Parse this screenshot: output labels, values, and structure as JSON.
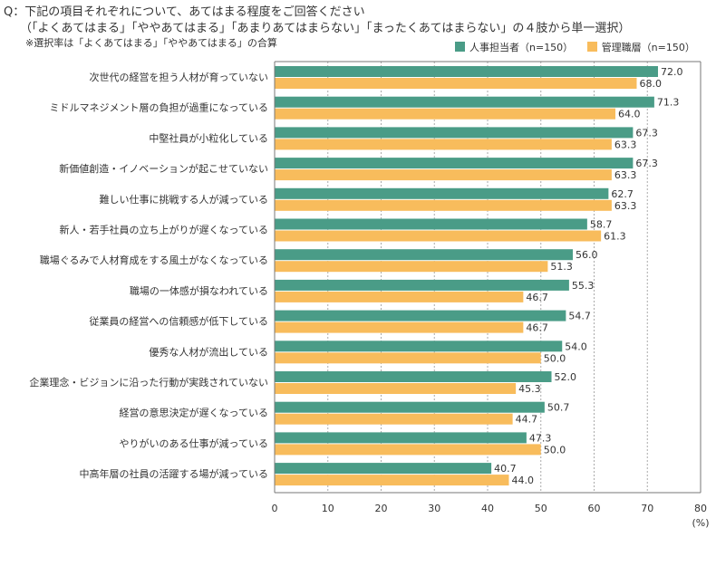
{
  "question": {
    "line1": "Q：下記の項目それぞれについて、あてはまる程度をご回答ください",
    "line2": "（「よくあてはまる」「ややあてはまる」「あまりあてはまらない」「まったくあてはまらない」の４肢から単一選択）",
    "note": "※選択率は「よくあてはまる」「ややあてはまる」の合算"
  },
  "colors": {
    "series1": "#4a9c87",
    "series2": "#f8bc5c",
    "axis": "#777777",
    "grid": "#aaaaaa"
  },
  "chart_data": {
    "type": "bar",
    "orientation": "horizontal",
    "categories": [
      "次世代の経営を担う人材が育っていない",
      "ミドルマネジメント層の負担が過重になっている",
      "中堅社員が小粒化している",
      "新価値創造・イノベーションが起こせていない",
      "難しい仕事に挑戦する人が減っている",
      "新人・若手社員の立ち上がりが遅くなっている",
      "職場ぐるみで人材育成をする風土がなくなっている",
      "職場の一体感が損なわれている",
      "従業員の経営への信頼感が低下している",
      "優秀な人材が流出している",
      "企業理念・ビジョンに沿った行動が実践されていない",
      "経営の意思決定が遅くなっている",
      "やりがいのある仕事が減っている",
      "中高年層の社員の活躍する場が減っている"
    ],
    "series": [
      {
        "name": "人事担当者（n=150）",
        "values": [
          72.0,
          71.3,
          67.3,
          67.3,
          62.7,
          58.7,
          56.0,
          55.3,
          54.7,
          54.0,
          52.0,
          50.7,
          47.3,
          40.7
        ]
      },
      {
        "name": "管理職層（n=150）",
        "values": [
          68.0,
          64.0,
          63.3,
          63.3,
          63.3,
          61.3,
          51.3,
          46.7,
          46.7,
          50.0,
          45.3,
          44.7,
          50.0,
          44.0
        ]
      }
    ],
    "xlim": [
      0,
      80
    ],
    "xticks": [
      "0",
      "10",
      "20",
      "30",
      "40",
      "50",
      "60",
      "70",
      "80"
    ],
    "xunit": "(%)",
    "grid": "vertical-dashed",
    "legend_position": "top-right"
  }
}
